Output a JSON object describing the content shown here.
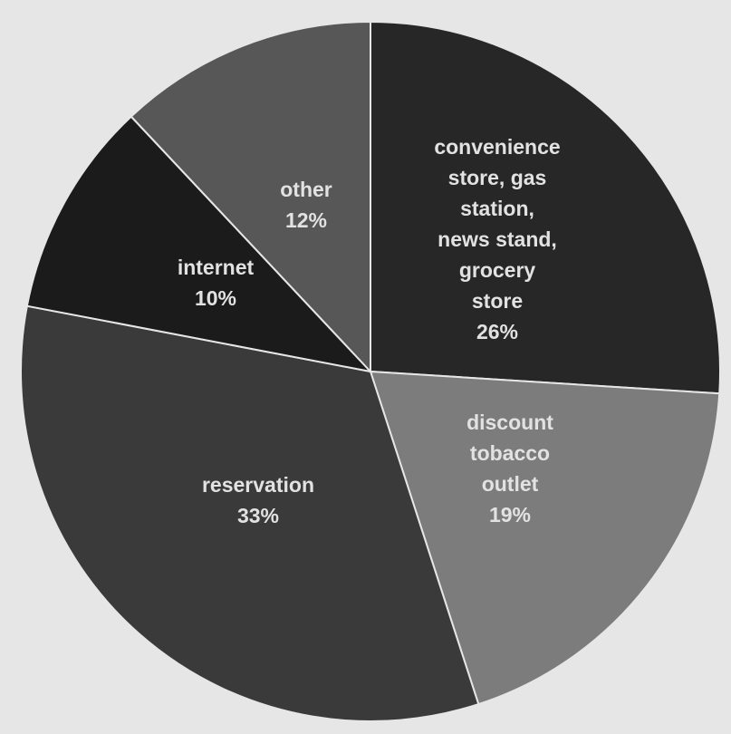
{
  "chart_data": {
    "type": "pie",
    "title": "",
    "slices": [
      {
        "label_lines": [
          "convenience",
          "store, gas",
          "station,",
          "news stand,",
          "grocery",
          "store"
        ],
        "percent_label": "26%",
        "value": 26,
        "color": "#272727"
      },
      {
        "label_lines": [
          "discount",
          "tobacco",
          "outlet"
        ],
        "percent_label": "19%",
        "value": 19,
        "color": "#7c7c7c"
      },
      {
        "label_lines": [
          "reservation"
        ],
        "percent_label": "33%",
        "value": 33,
        "color": "#3a3a3a"
      },
      {
        "label_lines": [
          "internet"
        ],
        "percent_label": "10%",
        "value": 10,
        "color": "#1b1b1b"
      },
      {
        "label_lines": [
          "other"
        ],
        "percent_label": "12%",
        "value": 12,
        "color": "#575757"
      }
    ],
    "start_angle_deg": 0,
    "direction": "clockwise",
    "legend": "none",
    "colors": {
      "background": "#e6e6e6",
      "slice_border": "#e6e6e6",
      "label_text": "#e2e2e2"
    }
  }
}
